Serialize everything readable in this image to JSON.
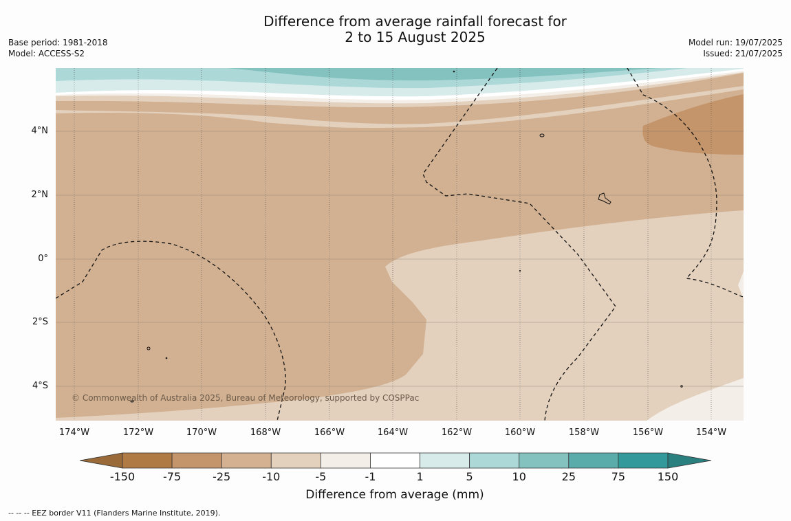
{
  "title": {
    "line1": "Difference from average rainfall forecast for",
    "line2": "2 to 15 August 2025"
  },
  "meta_left": {
    "base_period": "Base period: 1981-2018",
    "model": "Model: ACCESS-S2"
  },
  "meta_right": {
    "model_run": "Model run: 19/07/2025",
    "issued": "Issued: 21/07/2025"
  },
  "map": {
    "lat_labels": [
      "4°N",
      "2°N",
      "0°",
      "2°S",
      "4°S"
    ],
    "lon_labels": [
      "174°W",
      "172°W",
      "170°W",
      "168°W",
      "166°W",
      "164°W",
      "162°W",
      "160°W",
      "158°W",
      "156°W",
      "154°W"
    ],
    "copyright": "© Commonwealth of Australia 2025, Bureau of Meteorology, supported by COSPPac",
    "extent": {
      "lon_min": -174.6,
      "lon_max": -152.9,
      "lat_min": -5.2,
      "lat_max": 5.9
    }
  },
  "colorbar": {
    "labels": [
      "-150",
      "-75",
      "-25",
      "-10",
      "-5",
      "-1",
      "1",
      "5",
      "10",
      "25",
      "75",
      "150"
    ],
    "colors": [
      "#9a6a38",
      "#b07a45",
      "#c4946a",
      "#d3b191",
      "#e3d1be",
      "#f3eee8",
      "#ffffff",
      "#d6ebea",
      "#acd8d8",
      "#84c2c0",
      "#5aacab",
      "#33999a",
      "#2a7f7f"
    ],
    "title": "Difference from average (mm)"
  },
  "footer": "-- -- -- EEZ border V11 (Flanders Marine Institute, 2019)."
}
